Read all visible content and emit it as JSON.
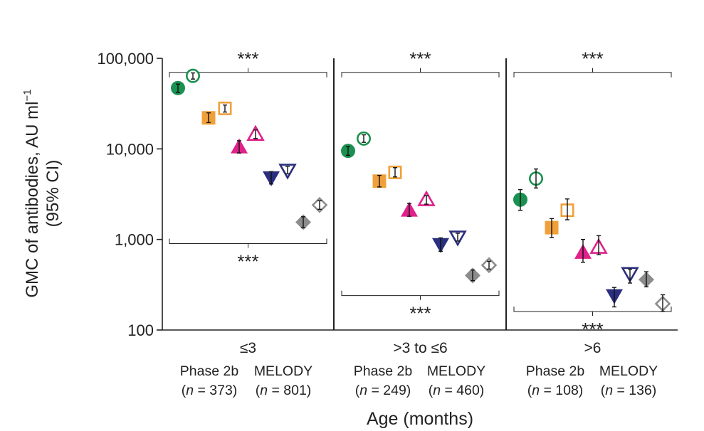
{
  "chart_data": {
    "type": "scatter",
    "y_scale": "log",
    "ylim": [
      100,
      100000
    ],
    "ylabel_line1": "GMC of antibodies, AU ml",
    "ylabel_sup": "−1",
    "ylabel_line2": "(95% CI)",
    "xlabel": "Age (months)",
    "y_ticks": [
      {
        "value": 100,
        "label": "100"
      },
      {
        "value": 1000,
        "label": "1,000"
      },
      {
        "value": 10000,
        "label": "10,000"
      },
      {
        "value": 100000,
        "label": "100,000"
      }
    ],
    "significance_label": "***",
    "colors": {
      "green": "#1a9150",
      "orange": "#f0a03a",
      "magenta": "#e0218a",
      "navy": "#2b2f7e",
      "grey": "#8c8c8c",
      "axis": "#222222"
    },
    "groups": [
      {
        "label": "≤3",
        "studies": [
          {
            "name": "Phase 2b",
            "n_prefix": "(",
            "n_italic": "n",
            "n_value": " = 373)"
          },
          {
            "name": "MELODY",
            "n_prefix": "(",
            "n_italic": "n",
            "n_value": " = 801)"
          }
        ],
        "points": [
          {
            "marker": "circle",
            "color": "green",
            "filled": true,
            "value": 47000,
            "lo": 42000,
            "hi": 52000
          },
          {
            "marker": "circle",
            "color": "green",
            "filled": false,
            "value": 64000,
            "lo": 59000,
            "hi": 69000
          },
          {
            "marker": "square",
            "color": "orange",
            "filled": true,
            "value": 22000,
            "lo": 19500,
            "hi": 25000
          },
          {
            "marker": "square",
            "color": "orange",
            "filled": false,
            "value": 28000,
            "lo": 25500,
            "hi": 30500
          },
          {
            "marker": "triangle-up",
            "color": "magenta",
            "filled": true,
            "value": 10500,
            "lo": 9000,
            "hi": 12300
          },
          {
            "marker": "triangle-up",
            "color": "magenta",
            "filled": false,
            "value": 14500,
            "lo": 13000,
            "hi": 16200
          },
          {
            "marker": "triangle-down",
            "color": "navy",
            "filled": true,
            "value": 4800,
            "lo": 4100,
            "hi": 5600
          },
          {
            "marker": "triangle-down",
            "color": "navy",
            "filled": false,
            "value": 5800,
            "lo": 5300,
            "hi": 6400
          },
          {
            "marker": "diamond",
            "color": "grey",
            "filled": true,
            "value": 1550,
            "lo": 1350,
            "hi": 1780
          },
          {
            "marker": "diamond",
            "color": "grey",
            "filled": false,
            "value": 2400,
            "lo": 2150,
            "hi": 2680
          }
        ],
        "brackets": [
          {
            "position": "top",
            "value": 70000
          },
          {
            "position": "bottom",
            "value": 900
          }
        ]
      },
      {
        "label": ">3 to ≤6",
        "studies": [
          {
            "name": "Phase 2b",
            "n_prefix": "(",
            "n_italic": "n",
            "n_value": " = 249)"
          },
          {
            "name": "MELODY",
            "n_prefix": "(",
            "n_italic": "n",
            "n_value": " = 460)"
          }
        ],
        "points": [
          {
            "marker": "circle",
            "color": "green",
            "filled": true,
            "value": 9500,
            "lo": 8500,
            "hi": 10600
          },
          {
            "marker": "circle",
            "color": "green",
            "filled": false,
            "value": 13000,
            "lo": 11800,
            "hi": 14300
          },
          {
            "marker": "square",
            "color": "orange",
            "filled": true,
            "value": 4400,
            "lo": 3800,
            "hi": 5100
          },
          {
            "marker": "square",
            "color": "orange",
            "filled": false,
            "value": 5500,
            "lo": 4900,
            "hi": 6200
          },
          {
            "marker": "triangle-up",
            "color": "magenta",
            "filled": true,
            "value": 2100,
            "lo": 1800,
            "hi": 2500
          },
          {
            "marker": "triangle-up",
            "color": "magenta",
            "filled": false,
            "value": 2750,
            "lo": 2450,
            "hi": 3050
          },
          {
            "marker": "triangle-down",
            "color": "navy",
            "filled": true,
            "value": 880,
            "lo": 740,
            "hi": 1040
          },
          {
            "marker": "triangle-down",
            "color": "navy",
            "filled": false,
            "value": 1060,
            "lo": 960,
            "hi": 1170
          },
          {
            "marker": "diamond",
            "color": "grey",
            "filled": true,
            "value": 400,
            "lo": 350,
            "hi": 460
          },
          {
            "marker": "diamond",
            "color": "grey",
            "filled": false,
            "value": 520,
            "lo": 470,
            "hi": 575
          }
        ],
        "brackets": [
          {
            "position": "top",
            "value": 70000
          },
          {
            "position": "bottom",
            "value": 240
          }
        ]
      },
      {
        "label": ">6",
        "studies": [
          {
            "name": "Phase 2b",
            "n_prefix": "(",
            "n_italic": "n",
            "n_value": " = 108)"
          },
          {
            "name": "MELODY",
            "n_prefix": "(",
            "n_italic": "n",
            "n_value": " = 136)"
          }
        ],
        "points": [
          {
            "marker": "circle",
            "color": "green",
            "filled": true,
            "value": 2750,
            "lo": 2100,
            "hi": 3550
          },
          {
            "marker": "circle",
            "color": "green",
            "filled": false,
            "value": 4700,
            "lo": 3700,
            "hi": 6000
          },
          {
            "marker": "square",
            "color": "orange",
            "filled": true,
            "value": 1350,
            "lo": 1050,
            "hi": 1700
          },
          {
            "marker": "square",
            "color": "orange",
            "filled": false,
            "value": 2100,
            "lo": 1650,
            "hi": 2800
          },
          {
            "marker": "triangle-up",
            "color": "magenta",
            "filled": true,
            "value": 720,
            "lo": 560,
            "hi": 1000
          },
          {
            "marker": "triangle-up",
            "color": "magenta",
            "filled": false,
            "value": 820,
            "lo": 680,
            "hi": 1100
          },
          {
            "marker": "triangle-down",
            "color": "navy",
            "filled": true,
            "value": 240,
            "lo": 180,
            "hi": 295
          },
          {
            "marker": "triangle-down",
            "color": "navy",
            "filled": false,
            "value": 420,
            "lo": 330,
            "hi": 470
          },
          {
            "marker": "diamond",
            "color": "grey",
            "filled": true,
            "value": 360,
            "lo": 300,
            "hi": 440
          },
          {
            "marker": "diamond",
            "color": "grey",
            "filled": false,
            "value": 195,
            "lo": 160,
            "hi": 245
          }
        ],
        "brackets": [
          {
            "position": "top",
            "value": 70000
          },
          {
            "position": "bottom",
            "value": 160
          }
        ]
      }
    ]
  }
}
